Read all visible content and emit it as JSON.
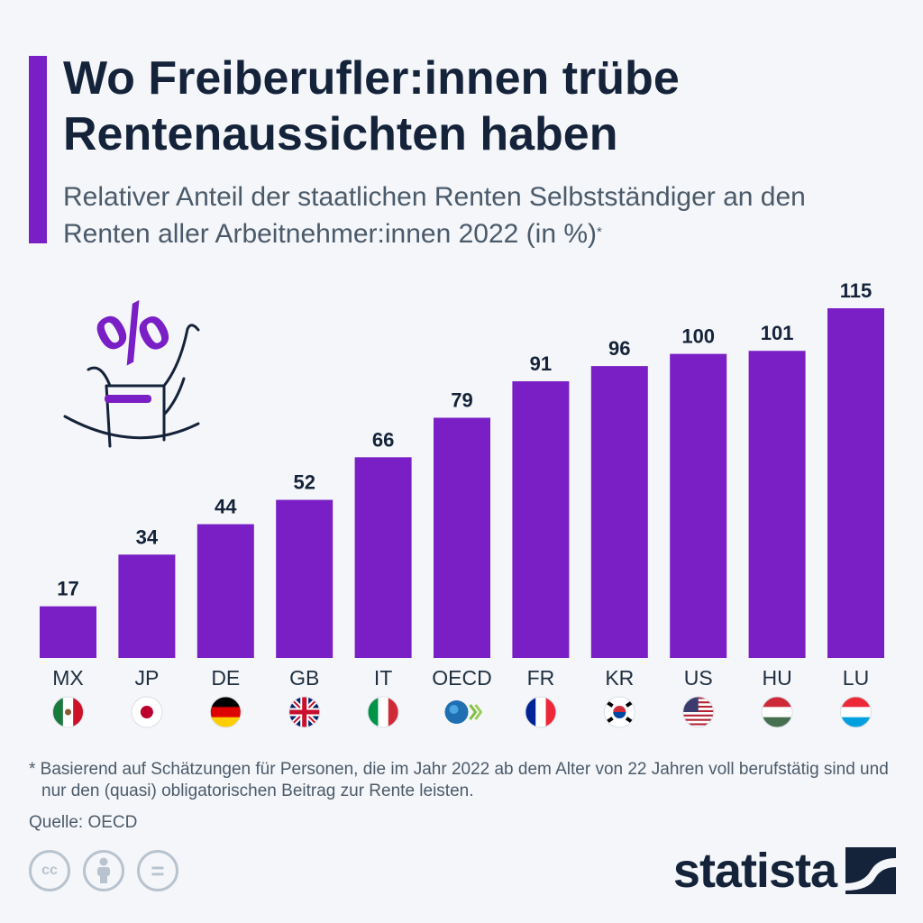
{
  "header": {
    "title": "Wo Freiberufler:innen trübe Rentenaussichten haben",
    "subtitle": "Relativer Anteil der staatlichen Renten Selbstständiger an den Renten aller Arbeitnehmer:innen 2022 (in %)",
    "subtitle_mark": "*"
  },
  "colors": {
    "accent": "#7a1fc6",
    "bar": "#7a1fc6",
    "text": "#15233a"
  },
  "chart_data": {
    "type": "bar",
    "title": "Wo Freiberufler:innen trübe Rentenaussichten haben",
    "subtitle": "Relativer Anteil der staatlichen Renten Selbstständiger an den Renten aller Arbeitnehmer:innen 2022 (in %)",
    "categories": [
      "MX",
      "JP",
      "DE",
      "GB",
      "IT",
      "OECD",
      "FR",
      "KR",
      "US",
      "HU",
      "LU"
    ],
    "values": [
      17,
      34,
      44,
      52,
      66,
      79,
      91,
      96,
      100,
      101,
      115
    ],
    "ylim": [
      0,
      115
    ],
    "grid": false,
    "data_labels": true,
    "flags": [
      "flag-mexico",
      "flag-japan",
      "flag-germany",
      "flag-uk",
      "flag-italy",
      "oecd-logo",
      "flag-france",
      "flag-south-korea",
      "flag-usa",
      "flag-hungary",
      "flag-luxembourg"
    ]
  },
  "footer": {
    "footnote": "* Basierend auf Schätzungen für Personen, die im Jahr 2022 ab dem Alter von 22 Jahren voll berufstätig sind und nur den (quasi) obligatorischen Beitrag zur Rente leisten.",
    "source": "Quelle: OECD",
    "brand": "statista",
    "license_icons": [
      "cc-icon",
      "by-icon",
      "nd-icon"
    ],
    "license_labels": [
      "cc",
      "",
      "="
    ]
  },
  "illustration": {
    "icon": "rocking-chair-percent-icon",
    "symbol": "%"
  }
}
